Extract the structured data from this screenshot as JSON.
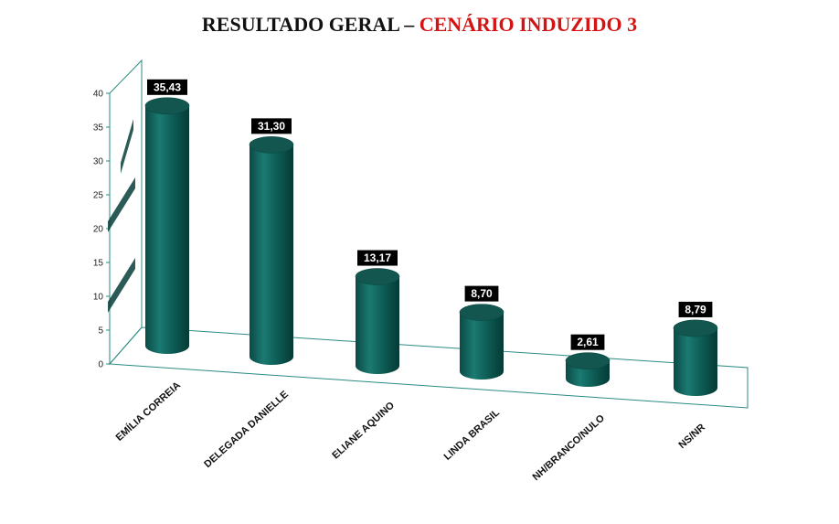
{
  "page": {
    "title_prefix": "RESULTADO GERAL – ",
    "title_highlight": "CENÁRIO INDUZIDO 3"
  },
  "colors": {
    "bar": "#0e6660",
    "bar_dark": "#063d39",
    "bar_top": "#13564f",
    "axis": "#2a8a82",
    "label_bg": "#000000",
    "title_highlight": "#d41414"
  },
  "chart_data": {
    "type": "bar",
    "style": "3d-cylinder",
    "title": "RESULTADO GERAL – CENÁRIO INDUZIDO 3",
    "categories": [
      "EMÍLIA CORREIA",
      "DELEGADA DANIELLE",
      "ELIANE AQUINO",
      "LINDA BRASIL",
      "NH/BRANCO/NULO",
      "NS/NR"
    ],
    "values": [
      35.43,
      31.3,
      13.17,
      8.7,
      2.61,
      8.79
    ],
    "data_labels": [
      "35,43",
      "31,30",
      "13,17",
      "8,70",
      "2,61",
      "8,79"
    ],
    "ylim": [
      0,
      40
    ],
    "yticks": [
      "0",
      "5",
      "10",
      "15",
      "20",
      "25",
      "30",
      "35",
      "40"
    ],
    "xlabel": "",
    "ylabel": "",
    "grid": false,
    "legend": "none"
  }
}
